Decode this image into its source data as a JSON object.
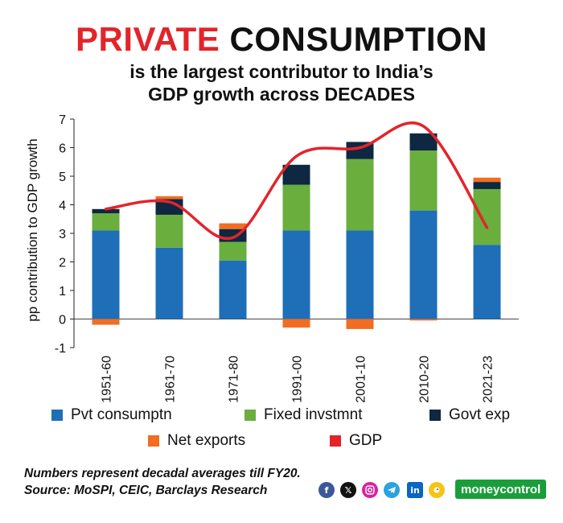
{
  "header": {
    "title_highlight": "PRIVATE",
    "title_rest": "CONSUMPTION",
    "subtitle_line1": "is the largest contributor to India’s",
    "subtitle_line2": "GDP growth across DECADES"
  },
  "chart_data": {
    "type": "bar",
    "stacked": true,
    "ylabel": "pp contribution to GDP growth",
    "xlabel": "",
    "ylim": [
      -1,
      7
    ],
    "yticks": [
      -1,
      0,
      1,
      2,
      3,
      4,
      5,
      6,
      7
    ],
    "categories": [
      "1951-60",
      "1961-70",
      "1971-80",
      "1991-00",
      "2001-10",
      "2010-20",
      "2021-23"
    ],
    "series": [
      {
        "name": "Pvt consumptn",
        "key": "pvt",
        "color": "#1e6fb8",
        "values": [
          3.1,
          2.5,
          2.05,
          3.1,
          3.1,
          3.8,
          2.6
        ]
      },
      {
        "name": "Fixed invstmnt",
        "key": "fixed",
        "color": "#6aae3e",
        "values": [
          0.6,
          1.15,
          0.65,
          1.6,
          2.5,
          2.1,
          1.95
        ]
      },
      {
        "name": "Govt exp",
        "key": "govt",
        "color": "#0d2840",
        "values": [
          0.15,
          0.55,
          0.45,
          0.7,
          0.6,
          0.6,
          0.25
        ]
      },
      {
        "name": "Net exports",
        "key": "netexp",
        "color": "#f26d21",
        "values": [
          -0.2,
          0.1,
          0.2,
          -0.3,
          -0.35,
          -0.05,
          0.15
        ]
      }
    ],
    "line": {
      "name": "GDP",
      "color": "#e3242b",
      "values": [
        3.85,
        4.1,
        2.85,
        5.7,
        6.0,
        6.75,
        3.2
      ]
    }
  },
  "legend": [
    {
      "label": "Pvt consumptn",
      "color": "#1e6fb8"
    },
    {
      "label": "Fixed invstmnt",
      "color": "#6aae3e"
    },
    {
      "label": "Govt exp",
      "color": "#0d2840"
    },
    {
      "label": "Net exports",
      "color": "#f26d21"
    },
    {
      "label": "GDP",
      "color": "#e3242b"
    }
  ],
  "footer": {
    "note": "Numbers represent decadal averages till FY20.",
    "source": "Source: MoSPI, CEIC, Barclays Research",
    "brand": "moneycontrol",
    "social_icons": [
      "facebook-icon",
      "x-icon",
      "instagram-icon",
      "telegram-icon",
      "linkedin-icon",
      "koo-icon"
    ]
  }
}
